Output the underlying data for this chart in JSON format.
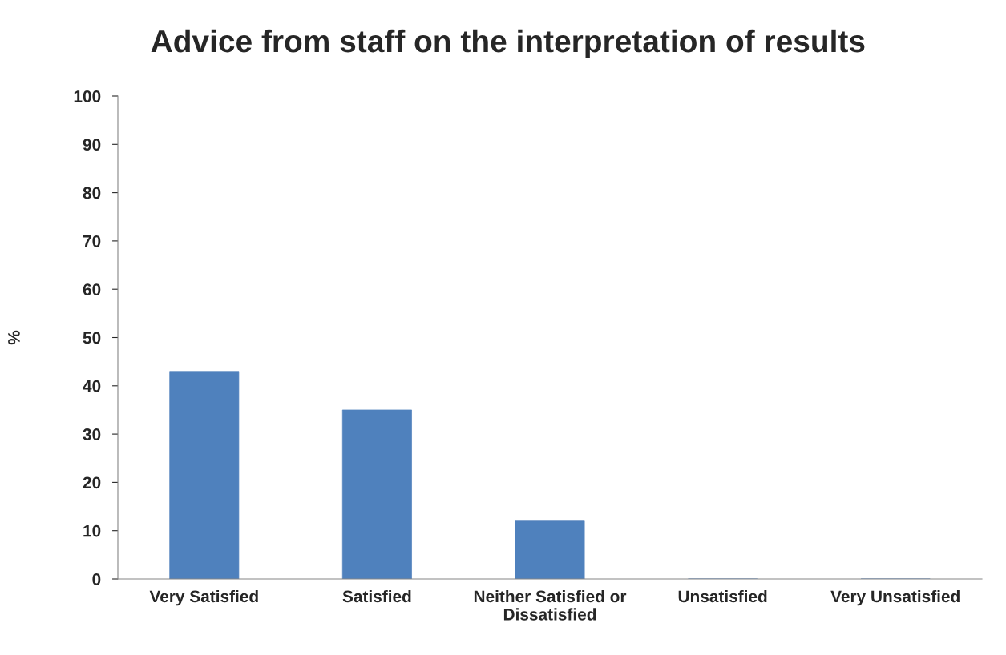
{
  "chart_data": {
    "type": "bar",
    "title": "Advice from staff on the interpretation of results",
    "ylabel": "%",
    "categories": [
      "Very Satisfied",
      "Satisfied",
      "Neither Satisfied or Dissatisfied",
      "Unsatisfied",
      "Very Unsatisfied"
    ],
    "values": [
      43,
      35,
      12,
      0,
      0
    ],
    "color": "#4f81bd",
    "ylim": [
      0,
      100
    ],
    "yticks": [
      0,
      10,
      20,
      30,
      40,
      50,
      60,
      70,
      80,
      90,
      100
    ],
    "grid": false,
    "legend": false
  }
}
